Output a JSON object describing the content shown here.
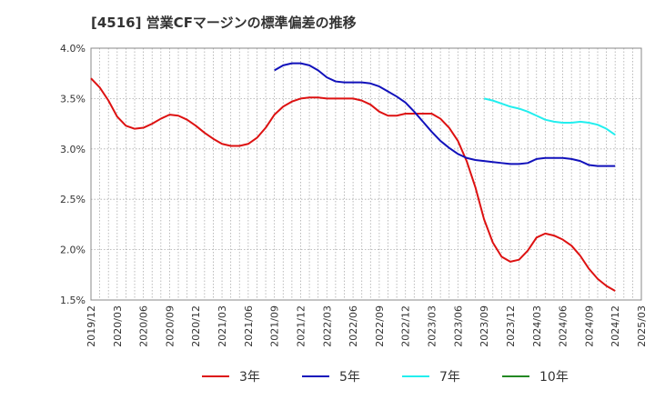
{
  "chart_data": {
    "type": "line",
    "title": "[4516]  営業CFマージンの標準偏差の推移",
    "xlabel": "",
    "ylabel": "",
    "ylim": [
      1.5,
      4.0
    ],
    "y_ticks": [
      {
        "value": 4.0,
        "label": "4.0%"
      },
      {
        "value": 3.5,
        "label": "3.5%"
      },
      {
        "value": 3.0,
        "label": "3.0%"
      },
      {
        "value": 2.5,
        "label": "2.5%"
      },
      {
        "value": 2.0,
        "label": "2.0%"
      },
      {
        "value": 1.5,
        "label": "1.5%"
      }
    ],
    "x_ticks": [
      "2019/12",
      "2020/03",
      "2020/06",
      "2020/09",
      "2020/12",
      "2021/03",
      "2021/06",
      "2021/09",
      "2021/12",
      "2022/03",
      "2022/06",
      "2022/09",
      "2022/12",
      "2023/03",
      "2023/06",
      "2023/09",
      "2023/12",
      "2024/03",
      "2024/06",
      "2024/09",
      "2024/12",
      "2025/03"
    ],
    "x_range": [
      "2019/12",
      "2025/03"
    ],
    "grid": true,
    "legend_position": "bottom",
    "series": [
      {
        "name": "3年",
        "color": "#dd1111",
        "x": [
          "2019/12",
          "2020/01",
          "2020/02",
          "2020/03",
          "2020/04",
          "2020/05",
          "2020/06",
          "2020/07",
          "2020/08",
          "2020/09",
          "2020/10",
          "2020/11",
          "2020/12",
          "2021/01",
          "2021/02",
          "2021/03",
          "2021/04",
          "2021/05",
          "2021/06",
          "2021/07",
          "2021/08",
          "2021/09",
          "2021/10",
          "2021/11",
          "2021/12",
          "2022/01",
          "2022/02",
          "2022/03",
          "2022/04",
          "2022/05",
          "2022/06",
          "2022/07",
          "2022/08",
          "2022/09",
          "2022/10",
          "2022/11",
          "2022/12",
          "2023/01",
          "2023/02",
          "2023/03",
          "2023/04",
          "2023/05",
          "2023/06",
          "2023/07",
          "2023/08",
          "2023/09",
          "2023/10",
          "2023/11",
          "2023/12",
          "2024/01",
          "2024/02",
          "2024/03",
          "2024/04",
          "2024/05",
          "2024/06",
          "2024/07",
          "2024/08",
          "2024/09",
          "2024/10",
          "2024/11",
          "2024/12"
        ],
        "values": [
          3.7,
          3.61,
          3.48,
          3.32,
          3.23,
          3.2,
          3.21,
          3.25,
          3.3,
          3.34,
          3.33,
          3.29,
          3.23,
          3.16,
          3.1,
          3.05,
          3.03,
          3.03,
          3.05,
          3.11,
          3.21,
          3.34,
          3.42,
          3.47,
          3.5,
          3.51,
          3.51,
          3.5,
          3.5,
          3.5,
          3.5,
          3.48,
          3.44,
          3.37,
          3.33,
          3.33,
          3.35,
          3.35,
          3.35,
          3.35,
          3.3,
          3.21,
          3.08,
          2.88,
          2.62,
          2.3,
          2.07,
          1.93,
          1.88,
          1.9,
          1.99,
          2.12,
          2.16,
          2.14,
          2.1,
          2.04,
          1.94,
          1.81,
          1.71,
          1.64,
          1.59
        ]
      },
      {
        "name": "5年",
        "color": "#1111bb",
        "x": [
          "2021/09",
          "2021/10",
          "2021/11",
          "2021/12",
          "2022/01",
          "2022/02",
          "2022/03",
          "2022/04",
          "2022/05",
          "2022/06",
          "2022/07",
          "2022/08",
          "2022/09",
          "2022/10",
          "2022/11",
          "2022/12",
          "2023/01",
          "2023/02",
          "2023/03",
          "2023/04",
          "2023/05",
          "2023/06",
          "2023/07",
          "2023/08",
          "2023/09",
          "2023/10",
          "2023/11",
          "2023/12",
          "2024/01",
          "2024/02",
          "2024/03",
          "2024/04",
          "2024/05",
          "2024/06",
          "2024/07",
          "2024/08",
          "2024/09",
          "2024/10",
          "2024/11",
          "2024/12"
        ],
        "values": [
          3.78,
          3.83,
          3.85,
          3.85,
          3.83,
          3.78,
          3.71,
          3.67,
          3.66,
          3.66,
          3.66,
          3.65,
          3.62,
          3.57,
          3.52,
          3.46,
          3.37,
          3.27,
          3.17,
          3.08,
          3.01,
          2.95,
          2.91,
          2.89,
          2.88,
          2.87,
          2.86,
          2.85,
          2.85,
          2.86,
          2.9,
          2.91,
          2.91,
          2.91,
          2.9,
          2.88,
          2.84,
          2.83,
          2.83,
          2.83
        ]
      },
      {
        "name": "7年",
        "color": "#22eeee",
        "x": [
          "2023/09",
          "2023/10",
          "2023/11",
          "2023/12",
          "2024/01",
          "2024/02",
          "2024/03",
          "2024/04",
          "2024/05",
          "2024/06",
          "2024/07",
          "2024/08",
          "2024/09",
          "2024/10",
          "2024/11",
          "2024/12"
        ],
        "values": [
          3.5,
          3.48,
          3.45,
          3.42,
          3.4,
          3.37,
          3.33,
          3.29,
          3.27,
          3.26,
          3.26,
          3.27,
          3.26,
          3.24,
          3.2,
          3.14
        ]
      },
      {
        "name": "10年",
        "color": "#228822",
        "x": [],
        "values": []
      }
    ]
  }
}
